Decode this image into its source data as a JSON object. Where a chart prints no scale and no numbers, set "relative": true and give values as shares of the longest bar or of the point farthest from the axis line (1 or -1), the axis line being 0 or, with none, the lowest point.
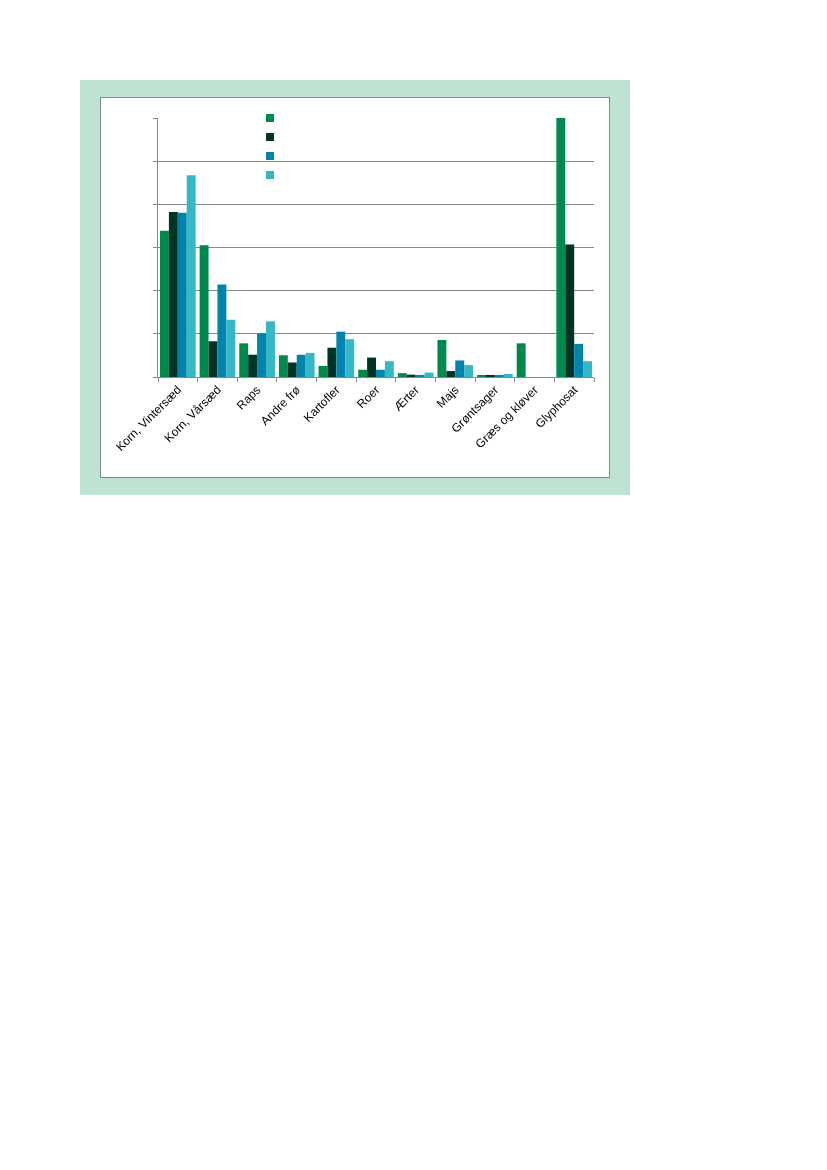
{
  "chart_data": {
    "type": "bar",
    "relative": true,
    "grid": "y",
    "categories": [
      "Korn, Vintersæd",
      "Korn, Vårsæd",
      "Raps",
      "Andre frø",
      "Kartofler",
      "Roer",
      "Ærter",
      "Majs",
      "Grøntsager",
      "Græs og kløver",
      "Glyphosat"
    ],
    "series": [
      {
        "color": "#00894f",
        "values": [
          0.565,
          0.509,
          0.13,
          0.084,
          0.043,
          0.028,
          0.015,
          0.143,
          0.004,
          0.13,
          1
        ]
      },
      {
        "color": "#003427",
        "values": [
          0.637,
          0.138,
          0.086,
          0.056,
          0.113,
          0.075,
          0.009,
          0.023,
          0.008,
          null,
          0.512
        ]
      },
      {
        "color": "#0084ad",
        "values": [
          0.634,
          0.357,
          0.168,
          0.086,
          0.175,
          0.028,
          0.008,
          0.064,
          0.004,
          null,
          0.128
        ]
      },
      {
        "color": "#35b8c5",
        "values": [
          0.779,
          0.221,
          0.215,
          0.093,
          0.146,
          0.061,
          0.017,
          0.046,
          0.012,
          null,
          0.061
        ]
      }
    ]
  }
}
